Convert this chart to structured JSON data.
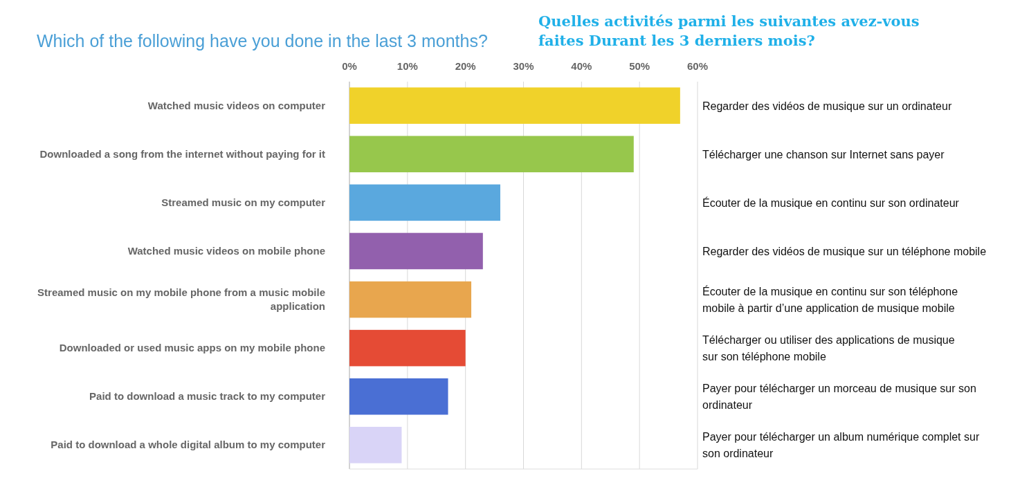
{
  "chart_data": {
    "type": "bar",
    "orientation": "horizontal",
    "title": "Which of the following have you done in the last 3 months?",
    "subtitle": "Quelles activités parmi les suivantes avez-vous faites Durant les 3 derniers mois?",
    "categories": [
      "Watched music videos on computer",
      "Downloaded a song from the internet without paying for it",
      "Streamed music on my computer",
      "Watched music videos on mobile phone",
      "Streamed music on my mobile phone from a music mobile application",
      "Downloaded or used music apps on my mobile phone",
      "Paid to download a music track to my computer",
      "Paid to download a whole digital album to my computer"
    ],
    "values": [
      57,
      49,
      26,
      23,
      21,
      20,
      17,
      9
    ],
    "colors": [
      "#f0d22a",
      "#97c74c",
      "#5aa8de",
      "#9260ad",
      "#e8a64e",
      "#e54b35",
      "#4a6fd4",
      "#d9d4f7"
    ],
    "xlim": [
      0,
      60
    ],
    "xticks": [
      {
        "value": 0,
        "label": "0%"
      },
      {
        "value": 10,
        "label": "10%"
      },
      {
        "value": 20,
        "label": "20%"
      },
      {
        "value": 30,
        "label": "30%"
      },
      {
        "value": 40,
        "label": "40%"
      },
      {
        "value": 50,
        "label": "50%"
      },
      {
        "value": 60,
        "label": "60%"
      }
    ],
    "grid": "x",
    "annotations": [
      "Regarder des vidéos de musique sur un ordinateur",
      "Télécharger une chanson sur Internet sans payer",
      "Écouter de la musique en continu sur son ordinateur",
      "Regarder des vidéos de musique sur un téléphone mobile",
      "Écouter de la musique en continu sur son téléphone mobile à partir d’une application de musique mobile",
      "Télécharger ou utiliser des applications de musique sur son téléphone mobile",
      "Payer pour télécharger un morceau de musique sur son ordinateur",
      "Payer pour télécharger un album numérique complet sur son ordinateur"
    ]
  }
}
